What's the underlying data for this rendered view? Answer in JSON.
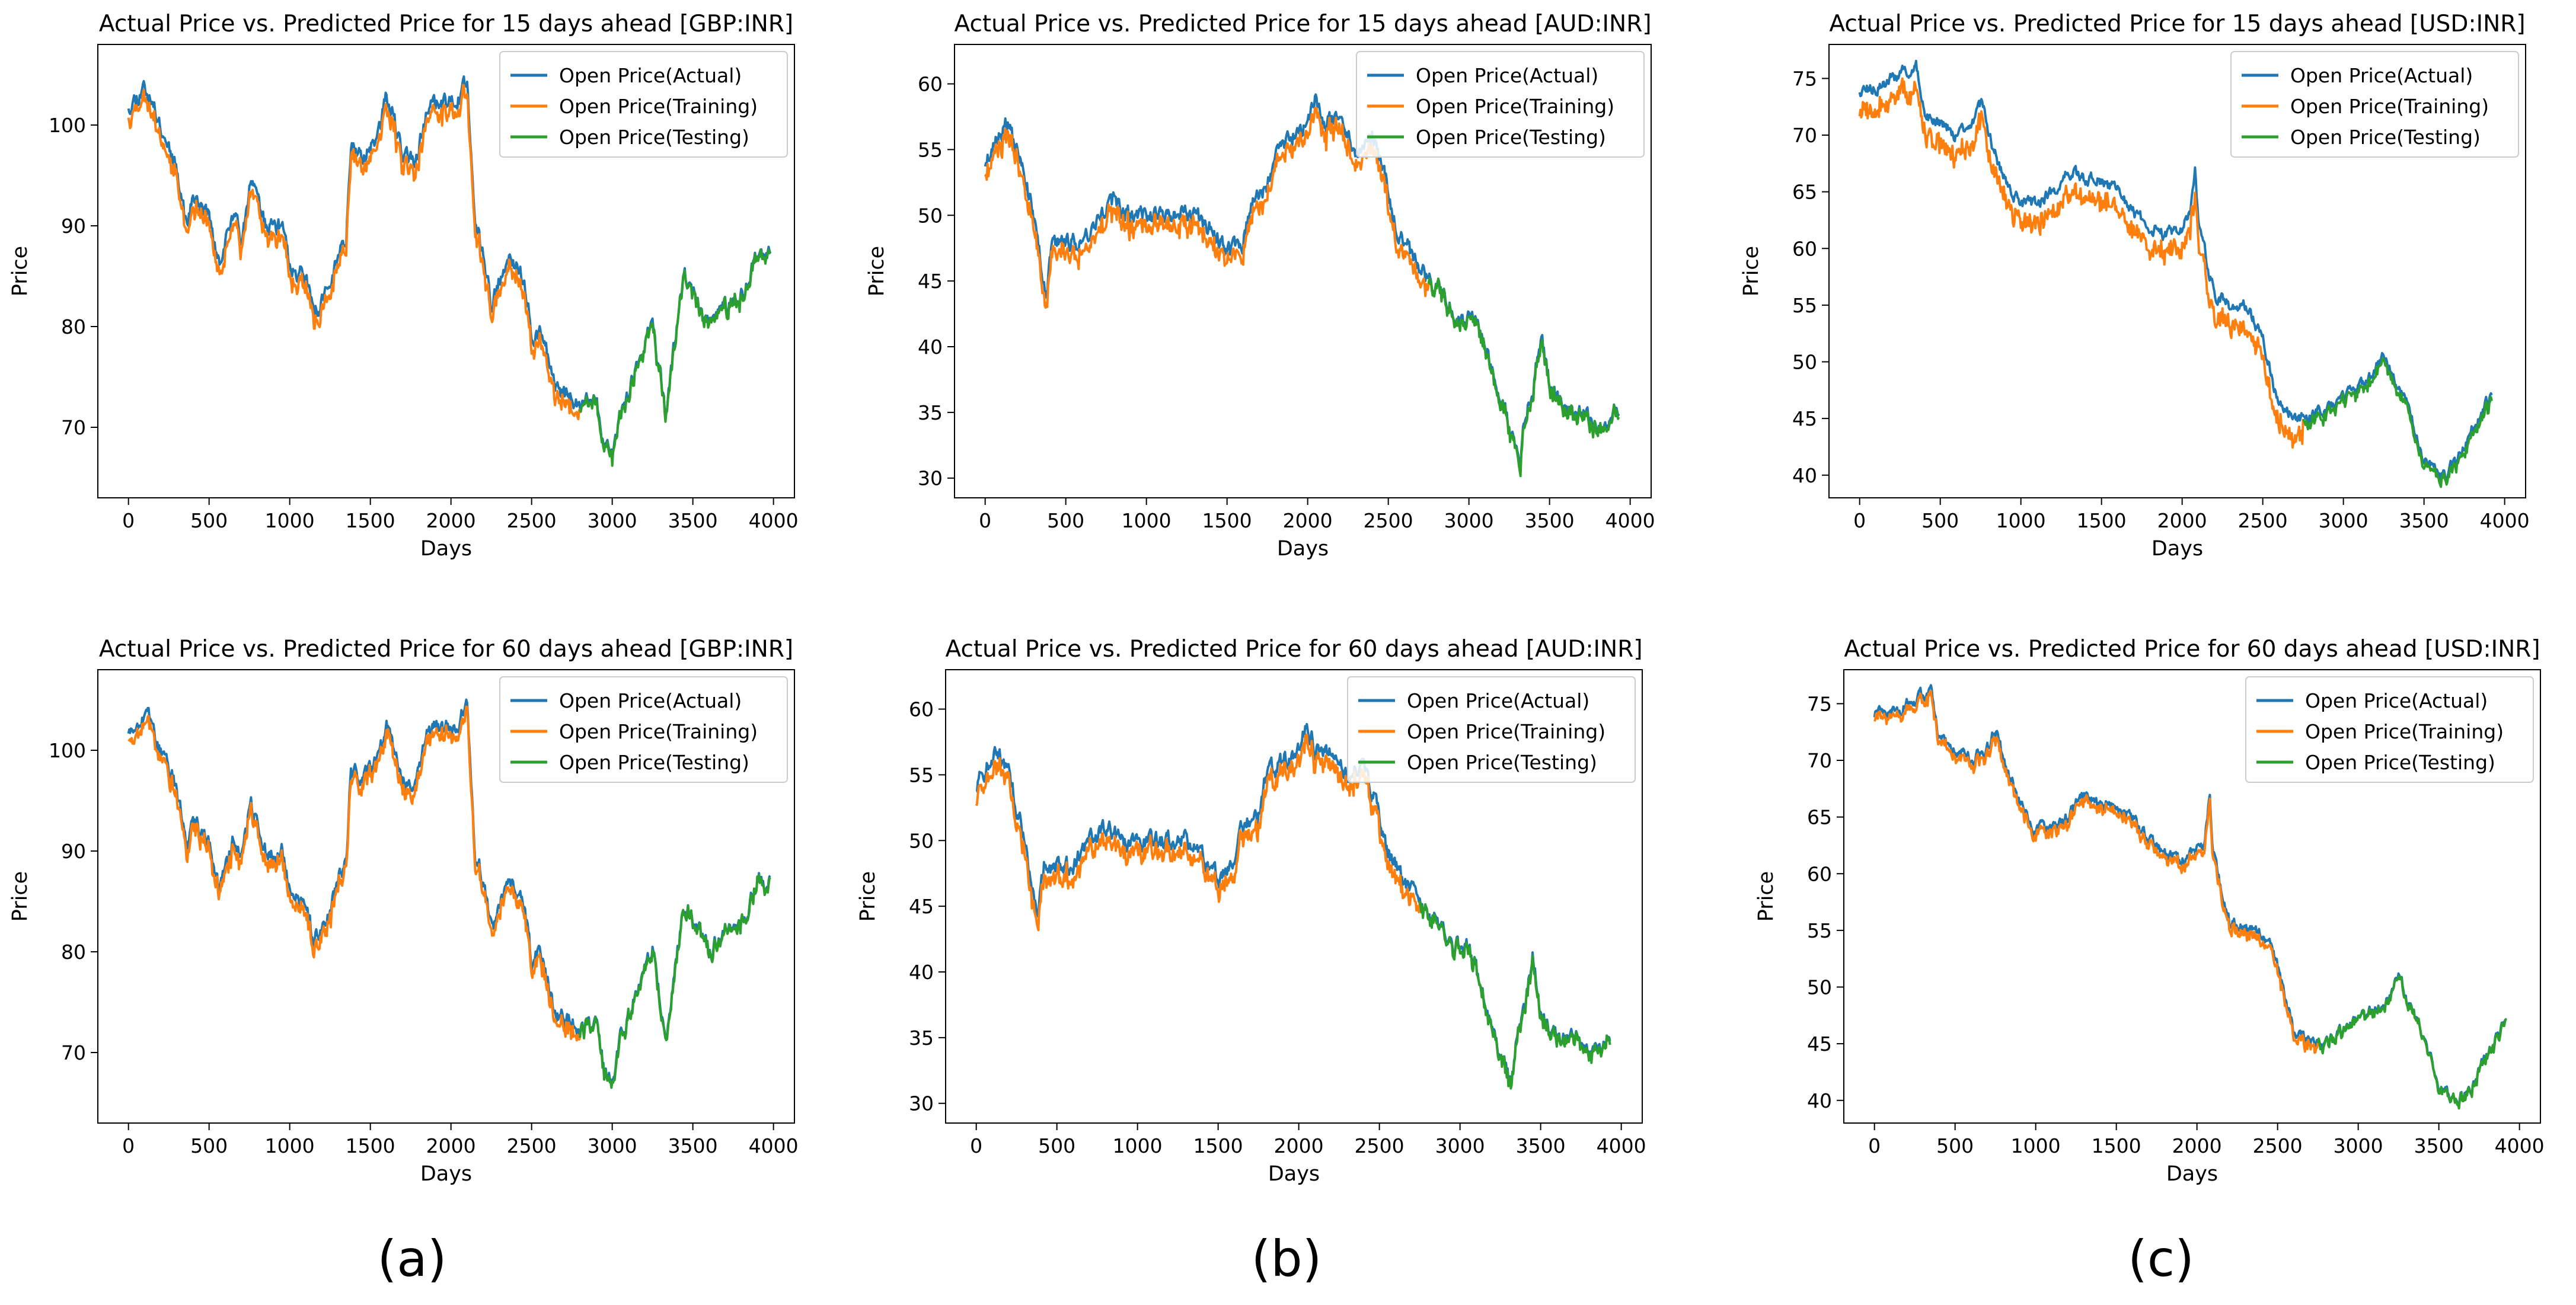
{
  "figure_labels": [
    "(a)",
    "(b)",
    "(c)"
  ],
  "colors": {
    "actual": "#1f77b4",
    "training": "#ff7f0e",
    "testing": "#2ca02c"
  },
  "chart_data": [
    {
      "type": "line",
      "title": "Actual Price vs. Predicted Price for 15 days ahead [GBP:INR]",
      "xlabel": "Days",
      "ylabel": "Price",
      "xlim": [
        -190,
        4130
      ],
      "ylim": [
        63,
        108
      ],
      "xticks": [
        0,
        500,
        1000,
        1500,
        2000,
        2500,
        3000,
        3500,
        4000
      ],
      "yticks": [
        70,
        80,
        90,
        100
      ],
      "legend": [
        "Open Price(Actual)",
        "Open Price(Training)",
        "Open Price(Testing)"
      ],
      "legend_position": "top-right",
      "train_end": 2800,
      "test_end": 3980,
      "gap": 1.0,
      "noise": 0.7,
      "seed": 11,
      "anchors": [
        [
          0,
          102
        ],
        [
          60,
          103
        ],
        [
          100,
          104
        ],
        [
          200,
          100
        ],
        [
          300,
          96
        ],
        [
          360,
          90
        ],
        [
          400,
          93
        ],
        [
          500,
          91
        ],
        [
          560,
          86
        ],
        [
          650,
          91
        ],
        [
          700,
          89
        ],
        [
          760,
          95
        ],
        [
          850,
          90
        ],
        [
          950,
          90
        ],
        [
          1000,
          86
        ],
        [
          1100,
          85
        ],
        [
          1150,
          81
        ],
        [
          1250,
          84
        ],
        [
          1300,
          87
        ],
        [
          1350,
          89
        ],
        [
          1380,
          98
        ],
        [
          1450,
          97
        ],
        [
          1550,
          99
        ],
        [
          1600,
          103
        ],
        [
          1700,
          97
        ],
        [
          1780,
          96
        ],
        [
          1850,
          102
        ],
        [
          2000,
          102
        ],
        [
          2100,
          104
        ],
        [
          2150,
          90
        ],
        [
          2200,
          87
        ],
        [
          2250,
          82
        ],
        [
          2350,
          87
        ],
        [
          2450,
          85
        ],
        [
          2500,
          79
        ],
        [
          2550,
          80
        ],
        [
          2650,
          74
        ],
        [
          2750,
          73
        ],
        [
          2800,
          72
        ],
        [
          2900,
          73
        ],
        [
          2950,
          68
        ],
        [
          3000,
          67
        ],
        [
          3050,
          71
        ],
        [
          3150,
          76
        ],
        [
          3250,
          80
        ],
        [
          3300,
          75
        ],
        [
          3330,
          71
        ],
        [
          3400,
          80
        ],
        [
          3450,
          85
        ],
        [
          3550,
          82
        ],
        [
          3600,
          80
        ],
        [
          3700,
          82
        ],
        [
          3800,
          83
        ],
        [
          3900,
          87
        ],
        [
          3980,
          87
        ]
      ]
    },
    {
      "type": "line",
      "title": "Actual Price vs. Predicted Price for 15 days ahead [AUD:INR]",
      "xlabel": "Days",
      "ylabel": "Price",
      "xlim": [
        -190,
        4130
      ],
      "ylim": [
        28.5,
        63
      ],
      "xticks": [
        0,
        500,
        1000,
        1500,
        2000,
        2500,
        3000,
        3500,
        4000
      ],
      "yticks": [
        30,
        35,
        40,
        45,
        50,
        55,
        60
      ],
      "legend": [
        "Open Price(Actual)",
        "Open Price(Training)",
        "Open Price(Testing)"
      ],
      "legend_position": "top-right",
      "train_end": 2750,
      "test_end": 3930,
      "gap": 0.9,
      "noise": 0.55,
      "seed": 23,
      "anchors": [
        [
          0,
          54
        ],
        [
          80,
          56
        ],
        [
          130,
          57
        ],
        [
          200,
          55
        ],
        [
          280,
          51
        ],
        [
          340,
          47
        ],
        [
          380,
          44
        ],
        [
          420,
          48
        ],
        [
          500,
          48
        ],
        [
          600,
          48
        ],
        [
          700,
          50
        ],
        [
          800,
          51
        ],
        [
          900,
          50
        ],
        [
          1000,
          50
        ],
        [
          1100,
          50
        ],
        [
          1200,
          50
        ],
        [
          1300,
          50
        ],
        [
          1400,
          49
        ],
        [
          1500,
          47
        ],
        [
          1600,
          48
        ],
        [
          1650,
          51
        ],
        [
          1750,
          52
        ],
        [
          1800,
          55
        ],
        [
          1900,
          56
        ],
        [
          2000,
          57
        ],
        [
          2050,
          59
        ],
        [
          2100,
          57
        ],
        [
          2200,
          57
        ],
        [
          2300,
          55
        ],
        [
          2400,
          56
        ],
        [
          2500,
          52
        ],
        [
          2550,
          49
        ],
        [
          2650,
          47
        ],
        [
          2750,
          45
        ],
        [
          2850,
          44
        ],
        [
          2950,
          42
        ],
        [
          3050,
          42
        ],
        [
          3150,
          38
        ],
        [
          3250,
          34
        ],
        [
          3320,
          31
        ],
        [
          3350,
          35
        ],
        [
          3400,
          37
        ],
        [
          3450,
          41
        ],
        [
          3500,
          37
        ],
        [
          3600,
          35
        ],
        [
          3700,
          35
        ],
        [
          3800,
          34
        ],
        [
          3930,
          35
        ]
      ]
    },
    {
      "type": "line",
      "title": "Actual Price vs. Predicted Price for 15 days ahead [USD:INR]",
      "xlabel": "Days",
      "ylabel": "Price",
      "xlim": [
        -190,
        4130
      ],
      "ylim": [
        38,
        78
      ],
      "xticks": [
        0,
        500,
        1000,
        1500,
        2000,
        2500,
        3000,
        3500,
        4000
      ],
      "yticks": [
        40,
        45,
        50,
        55,
        60,
        65,
        70,
        75
      ],
      "legend": [
        "Open Price(Actual)",
        "Open Price(Training)",
        "Open Price(Testing)"
      ],
      "legend_position": "top-right",
      "train_end": 2750,
      "test_end": 3920,
      "gap": 1.8,
      "noise": 0.45,
      "seed": 37,
      "anchors": [
        [
          0,
          74
        ],
        [
          100,
          74
        ],
        [
          200,
          75
        ],
        [
          350,
          76
        ],
        [
          400,
          72
        ],
        [
          500,
          71
        ],
        [
          600,
          70
        ],
        [
          700,
          71
        ],
        [
          760,
          73
        ],
        [
          800,
          70
        ],
        [
          900,
          66
        ],
        [
          1000,
          64
        ],
        [
          1100,
          64
        ],
        [
          1200,
          65
        ],
        [
          1300,
          67
        ],
        [
          1400,
          66
        ],
        [
          1500,
          66
        ],
        [
          1600,
          65
        ],
        [
          1700,
          63
        ],
        [
          1800,
          62
        ],
        [
          1900,
          61
        ],
        [
          2000,
          62
        ],
        [
          2050,
          63
        ],
        [
          2080,
          67
        ],
        [
          2100,
          62
        ],
        [
          2200,
          56
        ],
        [
          2300,
          55
        ],
        [
          2400,
          55
        ],
        [
          2500,
          52
        ],
        [
          2600,
          46
        ],
        [
          2700,
          45
        ],
        [
          2800,
          45
        ],
        [
          2900,
          46
        ],
        [
          3000,
          47
        ],
        [
          3100,
          48
        ],
        [
          3200,
          49
        ],
        [
          3250,
          51
        ],
        [
          3300,
          49
        ],
        [
          3400,
          46
        ],
        [
          3500,
          41
        ],
        [
          3600,
          40
        ],
        [
          3700,
          41
        ],
        [
          3800,
          44
        ],
        [
          3920,
          47
        ]
      ]
    },
    {
      "type": "line",
      "title": "Actual Price vs. Predicted Price for 60 days ahead [GBP:INR]",
      "xlabel": "Days",
      "ylabel": "Price",
      "xlim": [
        -190,
        4130
      ],
      "ylim": [
        63,
        108
      ],
      "xticks": [
        0,
        500,
        1000,
        1500,
        2000,
        2500,
        3000,
        3500,
        4000
      ],
      "yticks": [
        70,
        80,
        90,
        100
      ],
      "legend": [
        "Open Price(Actual)",
        "Open Price(Training)",
        "Open Price(Testing)"
      ],
      "legend_position": "top-right",
      "train_end": 2800,
      "test_end": 3980,
      "gap": 0.8,
      "noise": 0.7,
      "seed": 53,
      "anchors": [
        [
          0,
          102
        ],
        [
          60,
          103
        ],
        [
          100,
          104
        ],
        [
          200,
          100
        ],
        [
          300,
          96
        ],
        [
          360,
          90
        ],
        [
          400,
          93
        ],
        [
          500,
          91
        ],
        [
          560,
          86
        ],
        [
          650,
          91
        ],
        [
          700,
          89
        ],
        [
          760,
          95
        ],
        [
          850,
          90
        ],
        [
          950,
          90
        ],
        [
          1000,
          86
        ],
        [
          1100,
          85
        ],
        [
          1150,
          81
        ],
        [
          1250,
          84
        ],
        [
          1300,
          87
        ],
        [
          1350,
          89
        ],
        [
          1380,
          98
        ],
        [
          1450,
          97
        ],
        [
          1550,
          99
        ],
        [
          1600,
          103
        ],
        [
          1700,
          97
        ],
        [
          1780,
          96
        ],
        [
          1850,
          102
        ],
        [
          2000,
          102
        ],
        [
          2100,
          104
        ],
        [
          2150,
          90
        ],
        [
          2200,
          87
        ],
        [
          2250,
          82
        ],
        [
          2350,
          87
        ],
        [
          2450,
          85
        ],
        [
          2500,
          79
        ],
        [
          2550,
          80
        ],
        [
          2650,
          74
        ],
        [
          2750,
          73
        ],
        [
          2800,
          72
        ],
        [
          2900,
          73
        ],
        [
          2950,
          68
        ],
        [
          3000,
          67
        ],
        [
          3050,
          71
        ],
        [
          3150,
          76
        ],
        [
          3250,
          80
        ],
        [
          3300,
          75
        ],
        [
          3330,
          71
        ],
        [
          3400,
          80
        ],
        [
          3450,
          85
        ],
        [
          3550,
          82
        ],
        [
          3600,
          80
        ],
        [
          3700,
          82
        ],
        [
          3800,
          83
        ],
        [
          3900,
          87
        ],
        [
          3980,
          87
        ]
      ]
    },
    {
      "type": "line",
      "title": "Actual Price vs. Predicted Price for 60 days ahead [AUD:INR]",
      "xlabel": "Days",
      "ylabel": "Price",
      "xlim": [
        -190,
        4130
      ],
      "ylim": [
        28.5,
        63
      ],
      "xticks": [
        0,
        500,
        1000,
        1500,
        2000,
        2500,
        3000,
        3500,
        4000
      ],
      "yticks": [
        30,
        35,
        40,
        45,
        50,
        55,
        60
      ],
      "legend": [
        "Open Price(Actual)",
        "Open Price(Training)",
        "Open Price(Testing)"
      ],
      "legend_position": "top-right",
      "train_end": 2750,
      "test_end": 3930,
      "gap": 0.9,
      "noise": 0.55,
      "seed": 71,
      "anchors": [
        [
          0,
          54
        ],
        [
          80,
          56
        ],
        [
          130,
          57
        ],
        [
          200,
          55
        ],
        [
          280,
          51
        ],
        [
          340,
          47
        ],
        [
          380,
          44
        ],
        [
          420,
          48
        ],
        [
          500,
          48
        ],
        [
          600,
          48
        ],
        [
          700,
          50
        ],
        [
          800,
          51
        ],
        [
          900,
          50
        ],
        [
          1000,
          50
        ],
        [
          1100,
          50
        ],
        [
          1200,
          50
        ],
        [
          1300,
          50
        ],
        [
          1400,
          49
        ],
        [
          1500,
          47
        ],
        [
          1600,
          48
        ],
        [
          1650,
          51
        ],
        [
          1750,
          52
        ],
        [
          1800,
          55
        ],
        [
          1900,
          56
        ],
        [
          2000,
          57
        ],
        [
          2050,
          59
        ],
        [
          2100,
          57
        ],
        [
          2200,
          57
        ],
        [
          2300,
          55
        ],
        [
          2400,
          56
        ],
        [
          2500,
          52
        ],
        [
          2550,
          49
        ],
        [
          2650,
          47
        ],
        [
          2750,
          45
        ],
        [
          2850,
          44
        ],
        [
          2950,
          42
        ],
        [
          3050,
          42
        ],
        [
          3150,
          38
        ],
        [
          3250,
          34
        ],
        [
          3320,
          31
        ],
        [
          3350,
          35
        ],
        [
          3400,
          37
        ],
        [
          3450,
          41
        ],
        [
          3500,
          37
        ],
        [
          3600,
          35
        ],
        [
          3700,
          35
        ],
        [
          3800,
          34
        ],
        [
          3930,
          35
        ]
      ]
    },
    {
      "type": "line",
      "title": "Actual Price vs. Predicted Price for 60 days ahead [USD:INR]",
      "xlabel": "Days",
      "ylabel": "Price",
      "xlim": [
        -190,
        4130
      ],
      "ylim": [
        38,
        78
      ],
      "xticks": [
        0,
        500,
        1000,
        1500,
        2000,
        2500,
        3000,
        3500,
        4000
      ],
      "yticks": [
        40,
        45,
        50,
        55,
        60,
        65,
        70,
        75
      ],
      "legend": [
        "Open Price(Actual)",
        "Open Price(Training)",
        "Open Price(Testing)"
      ],
      "legend_position": "top-right",
      "train_end": 2750,
      "test_end": 3920,
      "gap": 0.5,
      "noise": 0.45,
      "seed": 89,
      "anchors": [
        [
          0,
          74
        ],
        [
          100,
          74
        ],
        [
          200,
          75
        ],
        [
          350,
          76
        ],
        [
          400,
          72
        ],
        [
          500,
          71
        ],
        [
          600,
          70
        ],
        [
          700,
          71
        ],
        [
          760,
          73
        ],
        [
          800,
          70
        ],
        [
          900,
          66
        ],
        [
          1000,
          64
        ],
        [
          1100,
          64
        ],
        [
          1200,
          65
        ],
        [
          1300,
          67
        ],
        [
          1400,
          66
        ],
        [
          1500,
          66
        ],
        [
          1600,
          65
        ],
        [
          1700,
          63
        ],
        [
          1800,
          62
        ],
        [
          1900,
          61
        ],
        [
          2000,
          62
        ],
        [
          2050,
          63
        ],
        [
          2080,
          67
        ],
        [
          2100,
          62
        ],
        [
          2200,
          56
        ],
        [
          2300,
          55
        ],
        [
          2400,
          55
        ],
        [
          2500,
          52
        ],
        [
          2600,
          46
        ],
        [
          2700,
          45
        ],
        [
          2800,
          45
        ],
        [
          2900,
          46
        ],
        [
          3000,
          47
        ],
        [
          3100,
          48
        ],
        [
          3200,
          49
        ],
        [
          3250,
          51
        ],
        [
          3300,
          49
        ],
        [
          3400,
          46
        ],
        [
          3500,
          41
        ],
        [
          3600,
          40
        ],
        [
          3700,
          41
        ],
        [
          3800,
          44
        ],
        [
          3920,
          47
        ]
      ]
    }
  ]
}
